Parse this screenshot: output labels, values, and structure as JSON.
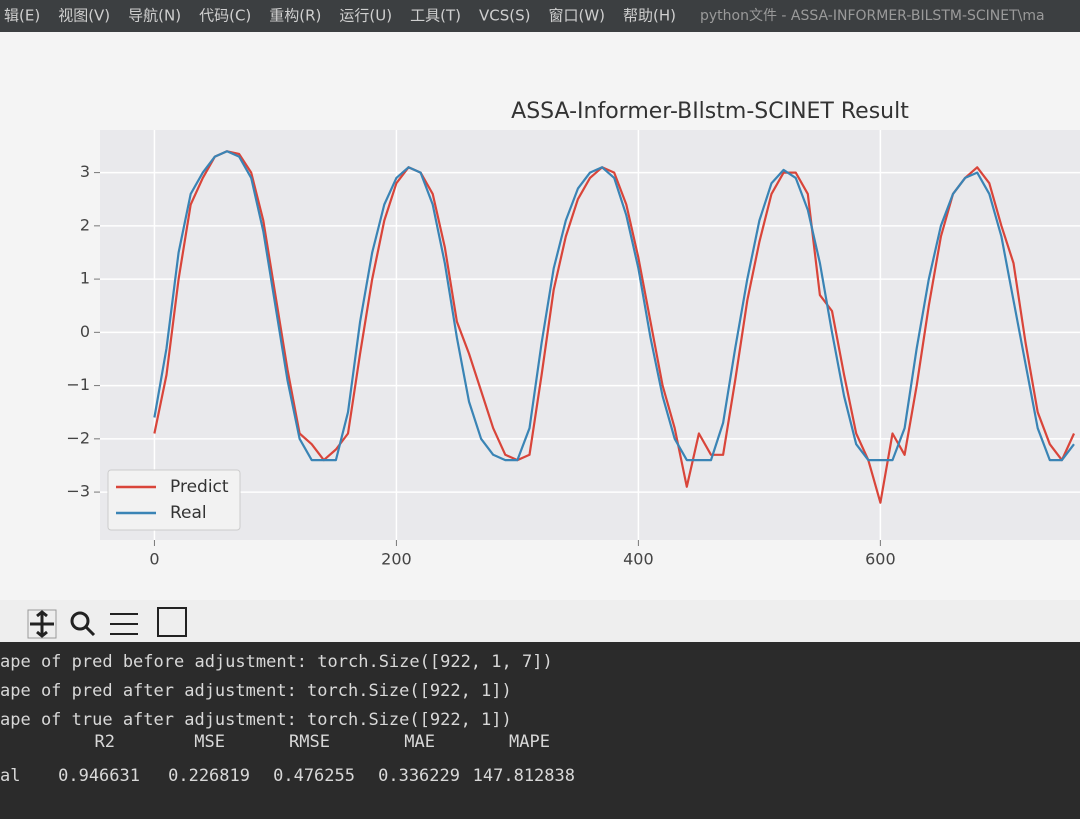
{
  "menu": {
    "items": [
      "辑(E)",
      "视图(V)",
      "导航(N)",
      "代码(C)",
      "重构(R)",
      "运行(U)",
      "工具(T)",
      "VCS(S)",
      "窗口(W)",
      "帮助(H)"
    ],
    "window_title": "python文件 - ASSA-INFORMER-BILSTM-SCINET\\ma"
  },
  "chart_data": {
    "type": "line",
    "title": "ASSA-Informer-BIlstm-SCINET Result",
    "x": [
      0,
      10,
      20,
      30,
      40,
      50,
      60,
      70,
      80,
      90,
      100,
      110,
      120,
      130,
      140,
      150,
      160,
      170,
      180,
      190,
      200,
      210,
      220,
      230,
      240,
      250,
      260,
      270,
      280,
      290,
      300,
      310,
      320,
      330,
      340,
      350,
      360,
      370,
      380,
      390,
      400,
      410,
      420,
      430,
      440,
      450,
      460,
      470,
      480,
      490,
      500,
      510,
      520,
      530,
      540,
      550,
      560,
      570,
      580,
      590,
      600,
      610,
      620,
      630,
      640,
      650,
      660,
      670,
      680,
      690,
      700,
      710,
      720,
      730,
      740,
      750,
      760
    ],
    "series": [
      {
        "name": "Predict",
        "color": "#d9453a",
        "values": [
          -1.9,
          -0.8,
          1.0,
          2.4,
          2.9,
          3.3,
          3.4,
          3.35,
          3.0,
          2.1,
          0.7,
          -0.7,
          -1.9,
          -2.1,
          -2.4,
          -2.2,
          -1.9,
          -0.4,
          1.0,
          2.1,
          2.8,
          3.1,
          3.0,
          2.6,
          1.6,
          0.2,
          -0.4,
          -1.1,
          -1.8,
          -2.3,
          -2.4,
          -2.3,
          -0.8,
          0.8,
          1.8,
          2.5,
          2.9,
          3.1,
          3.0,
          2.4,
          1.4,
          0.2,
          -1.0,
          -1.8,
          -2.9,
          -1.9,
          -2.3,
          -2.3,
          -0.9,
          0.6,
          1.7,
          2.6,
          3.0,
          3.0,
          2.6,
          0.7,
          0.4,
          -0.8,
          -1.9,
          -2.4,
          -3.2,
          -1.9,
          -2.3,
          -1.0,
          0.5,
          1.8,
          2.6,
          2.9,
          3.1,
          2.8,
          2.0,
          1.3,
          -0.2,
          -1.5,
          -2.1,
          -2.4,
          -1.9
        ]
      },
      {
        "name": "Real",
        "color": "#3a84b5",
        "values": [
          -1.6,
          -0.3,
          1.5,
          2.6,
          3.0,
          3.3,
          3.4,
          3.3,
          2.9,
          1.9,
          0.5,
          -0.9,
          -2.0,
          -2.4,
          -2.4,
          -2.4,
          -1.5,
          0.2,
          1.5,
          2.4,
          2.9,
          3.1,
          3.0,
          2.4,
          1.3,
          -0.1,
          -1.3,
          -2.0,
          -2.3,
          -2.4,
          -2.4,
          -1.8,
          -0.2,
          1.2,
          2.1,
          2.7,
          3.0,
          3.1,
          2.9,
          2.2,
          1.2,
          -0.1,
          -1.2,
          -2.0,
          -2.4,
          -2.4,
          -2.4,
          -1.7,
          -0.3,
          1.0,
          2.1,
          2.8,
          3.05,
          2.9,
          2.3,
          1.3,
          0.0,
          -1.2,
          -2.1,
          -2.4,
          -2.4,
          -2.4,
          -1.8,
          -0.3,
          1.0,
          2.0,
          2.6,
          2.9,
          3.0,
          2.6,
          1.8,
          0.6,
          -0.6,
          -1.8,
          -2.4,
          -2.4,
          -2.1
        ]
      }
    ],
    "xlim": [
      -45,
      765
    ],
    "ylim": [
      -3.9,
      3.8
    ],
    "xticks": [
      0,
      200,
      400,
      600
    ],
    "yticks": [
      {
        "value": -3,
        "label": "−3"
      },
      {
        "value": -2,
        "label": "−2"
      },
      {
        "value": -1,
        "label": "−1"
      },
      0,
      1,
      2,
      3
    ],
    "grid": true,
    "legend": "lower left"
  },
  "console": {
    "lines": [
      "ape of pred before adjustment: torch.Size([922, 1, 7])",
      "ape of pred after adjustment: torch.Size([922, 1])",
      "ape of true after adjustment: torch.Size([922, 1])"
    ],
    "metrics": {
      "headers": [
        "R2",
        "MSE",
        "RMSE",
        "MAE",
        "MAPE"
      ],
      "rows": [
        [
          "al",
          0.946631,
          0.226819,
          0.476255,
          0.336229,
          147.812838
        ]
      ]
    }
  }
}
